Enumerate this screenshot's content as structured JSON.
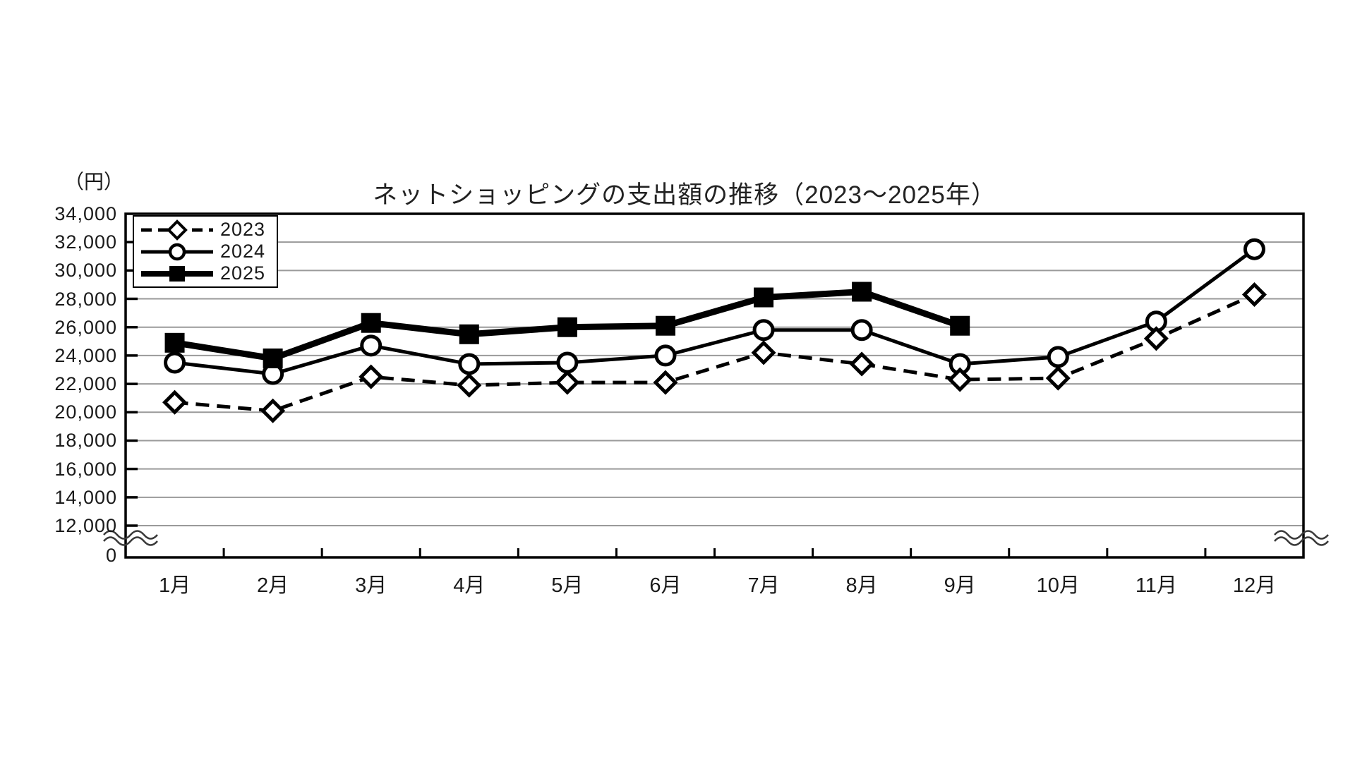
{
  "title": "ネットショッピングの支出額の推移（2023～2025年）",
  "unit_label": "（円）",
  "chart_data": {
    "type": "line",
    "title": "ネットショッピングの支出額の推移（2023～2025年）",
    "ylabel": "（円）",
    "grid": "horizontal",
    "legend_position": "top-left",
    "axis_break": true,
    "ylim_display": [
      12000,
      34000
    ],
    "categories": [
      "1月",
      "2月",
      "3月",
      "4月",
      "5月",
      "6月",
      "7月",
      "8月",
      "9月",
      "10月",
      "11月",
      "12月"
    ],
    "y_ticks": [
      {
        "value": 34000,
        "label": "34,000"
      },
      {
        "value": 32000,
        "label": "32,000"
      },
      {
        "value": 30000,
        "label": "30,000"
      },
      {
        "value": 28000,
        "label": "28,000"
      },
      {
        "value": 26000,
        "label": "26,000"
      },
      {
        "value": 24000,
        "label": "24,000"
      },
      {
        "value": 22000,
        "label": "22,000"
      },
      {
        "value": 20000,
        "label": "20,000"
      },
      {
        "value": 18000,
        "label": "18,000"
      },
      {
        "value": 16000,
        "label": "16,000"
      },
      {
        "value": 14000,
        "label": "14,000"
      },
      {
        "value": 12000,
        "label": "12,000"
      },
      {
        "value": 0,
        "label": "0"
      }
    ],
    "series": [
      {
        "name": "2023",
        "style": "dashed",
        "marker": "open-diamond",
        "values": [
          20700,
          20100,
          22500,
          21900,
          22100,
          22100,
          24200,
          23400,
          22300,
          22400,
          25200,
          28300
        ]
      },
      {
        "name": "2024",
        "style": "solid",
        "marker": "open-circle",
        "values": [
          23500,
          22700,
          24700,
          23400,
          23500,
          24000,
          25800,
          25800,
          23400,
          23900,
          26400,
          31500
        ]
      },
      {
        "name": "2025",
        "style": "solid-thick",
        "marker": "filled-square",
        "values": [
          24900,
          23800,
          26300,
          25500,
          26000,
          26100,
          28100,
          28500,
          26100,
          null,
          null,
          null
        ]
      }
    ],
    "colors": {
      "line": "#000000",
      "grid": "#9a9a9a",
      "frame": "#000000",
      "text": "#1a1a1a"
    }
  }
}
